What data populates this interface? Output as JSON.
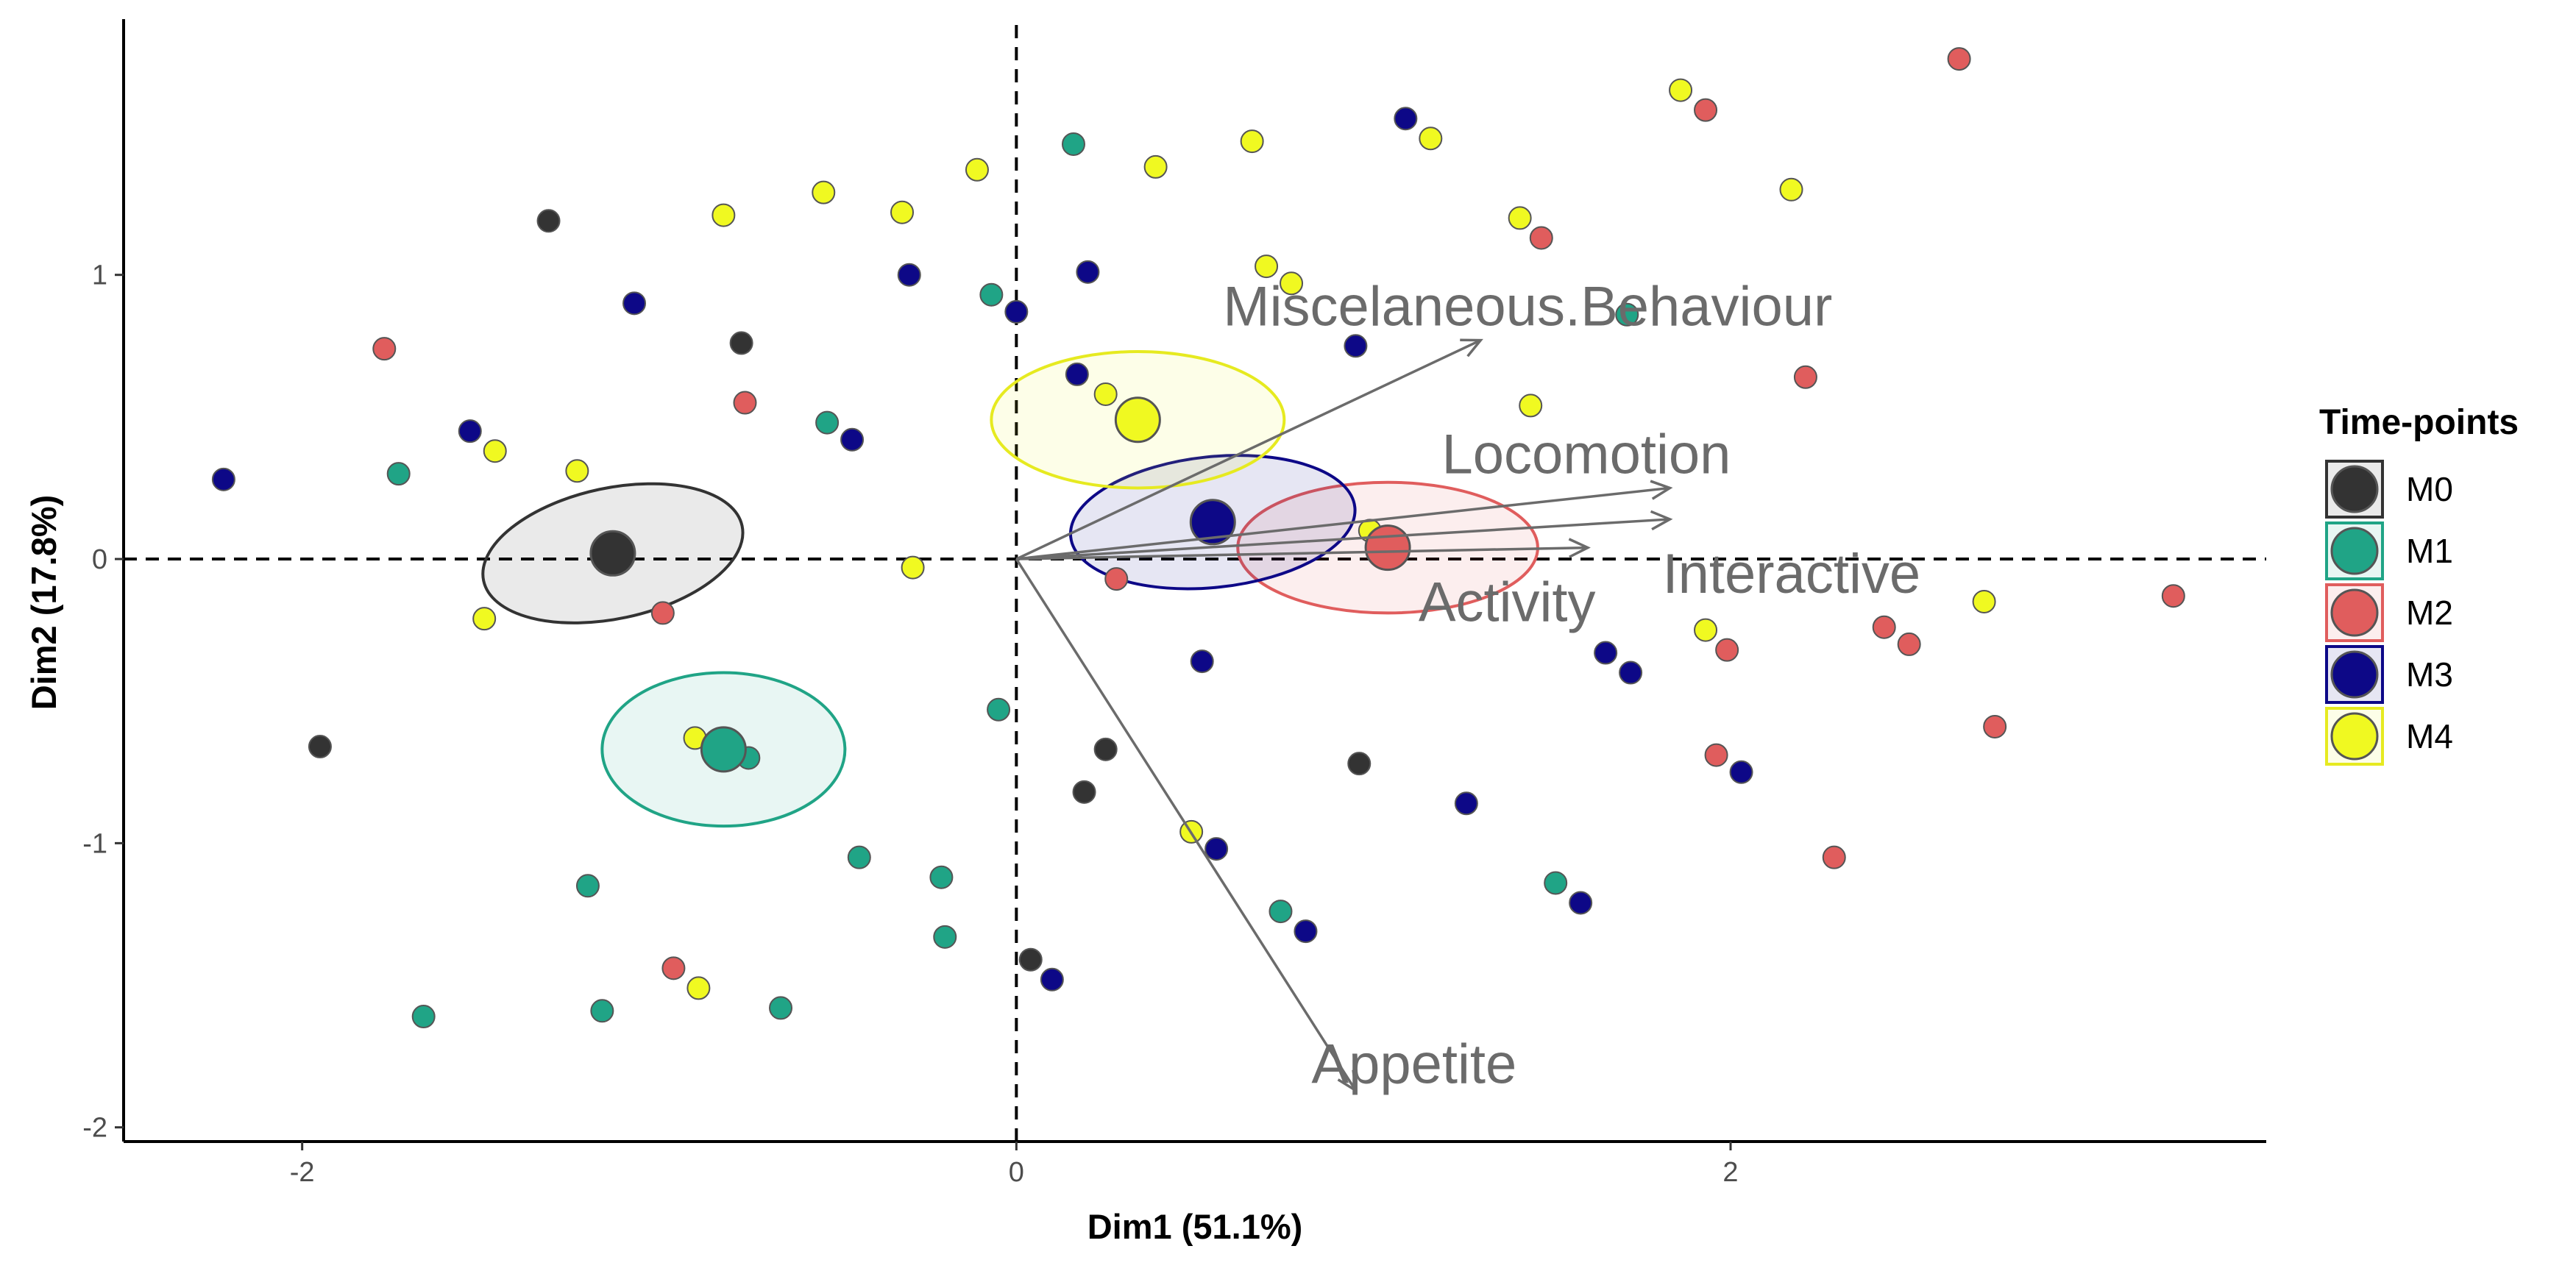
{
  "chart_data": {
    "type": "scatter",
    "subtype": "pca-biplot",
    "xlabel": "Dim1 (51.1%)",
    "ylabel": "Dim2 (17.8%)",
    "xlim": [
      -2.5,
      3.5
    ],
    "ylim": [
      -2.05,
      1.9
    ],
    "xticks": [
      -2,
      0,
      2
    ],
    "yticks": [
      -2,
      -1,
      0,
      1
    ],
    "xtick_labels": [
      "-2",
      "0",
      "2"
    ],
    "ytick_labels": [
      "-2",
      "-1",
      "0",
      "1"
    ],
    "reference_lines": {
      "x": 0,
      "y": 0,
      "style": "dashed"
    },
    "legend": {
      "title": "Time-points",
      "position": "right"
    },
    "groups": [
      {
        "name": "M0",
        "color": "#333333",
        "stroke": "#1a1a1a",
        "fill_alpha": 0.1,
        "centroid": [
          -1.13,
          0.02
        ],
        "ellipse": {
          "rx": 0.37,
          "ry": 0.23,
          "angle_deg": -12
        },
        "points": [
          [
            -1.31,
            1.19
          ],
          [
            -0.77,
            0.76
          ],
          [
            -1.95,
            -0.66
          ],
          [
            0.25,
            -0.67
          ],
          [
            0.19,
            -0.82
          ],
          [
            0.04,
            -1.41
          ],
          [
            0.96,
            -0.72
          ]
        ]
      },
      {
        "name": "M1",
        "color": "#20A486",
        "stroke": "#17947a",
        "fill_alpha": 0.1,
        "centroid": [
          -0.82,
          -0.67
        ],
        "ellipse": {
          "rx": 0.34,
          "ry": 0.27,
          "angle_deg": 0
        },
        "points": [
          [
            0.16,
            1.46
          ],
          [
            -0.07,
            0.93
          ],
          [
            -0.53,
            0.48
          ],
          [
            -1.73,
            0.3
          ],
          [
            -0.75,
            -0.7
          ],
          [
            -0.05,
            -0.53
          ],
          [
            -1.2,
            -1.15
          ],
          [
            -0.44,
            -1.05
          ],
          [
            -0.21,
            -1.12
          ],
          [
            -0.2,
            -1.33
          ],
          [
            -1.66,
            -1.61
          ],
          [
            -1.16,
            -1.59
          ],
          [
            -0.66,
            -1.58
          ],
          [
            0.74,
            -1.24
          ],
          [
            1.51,
            -1.14
          ],
          [
            1.71,
            0.86
          ]
        ]
      },
      {
        "name": "M2",
        "color": "#E05D5D",
        "stroke": "#c94a4a",
        "fill_alpha": 0.1,
        "centroid": [
          1.04,
          0.04
        ],
        "ellipse": {
          "rx": 0.42,
          "ry": 0.23,
          "angle_deg": 0
        },
        "points": [
          [
            2.64,
            1.76
          ],
          [
            1.93,
            1.58
          ],
          [
            1.47,
            1.13
          ],
          [
            2.21,
            0.64
          ],
          [
            -1.77,
            0.74
          ],
          [
            -0.76,
            0.55
          ],
          [
            -0.99,
            -0.19
          ],
          [
            0.28,
            -0.07
          ],
          [
            2.43,
            -0.24
          ],
          [
            2.5,
            -0.3
          ],
          [
            2.74,
            -0.59
          ],
          [
            3.24,
            -0.13
          ],
          [
            1.99,
            -0.32
          ],
          [
            1.96,
            -0.69
          ],
          [
            2.29,
            -1.05
          ],
          [
            -0.96,
            -1.44
          ]
        ]
      },
      {
        "name": "M3",
        "color": "#0D0887",
        "stroke": "#07055a",
        "fill_alpha": 0.1,
        "centroid": [
          0.55,
          0.13
        ],
        "ellipse": {
          "rx": 0.4,
          "ry": 0.23,
          "angle_deg": -6
        },
        "points": [
          [
            1.09,
            1.55
          ],
          [
            -1.07,
            0.9
          ],
          [
            -0.3,
            1.0
          ],
          [
            0.2,
            1.01
          ],
          [
            0.0,
            0.87
          ],
          [
            0.95,
            0.75
          ],
          [
            0.17,
            0.65
          ],
          [
            -1.53,
            0.45
          ],
          [
            -0.46,
            0.42
          ],
          [
            -2.22,
            0.28
          ],
          [
            0.52,
            -0.36
          ],
          [
            1.65,
            -0.33
          ],
          [
            1.72,
            -0.4
          ],
          [
            1.26,
            -0.86
          ],
          [
            2.03,
            -0.75
          ],
          [
            0.56,
            -1.02
          ],
          [
            0.81,
            -1.31
          ],
          [
            1.58,
            -1.21
          ],
          [
            0.1,
            -1.48
          ]
        ]
      },
      {
        "name": "M4",
        "color": "#F0F921",
        "stroke": "#aaaaaa",
        "fill_alpha": 0.1,
        "centroid": [
          0.34,
          0.49
        ],
        "ellipse": {
          "rx": 0.41,
          "ry": 0.24,
          "angle_deg": 0
        },
        "points": [
          [
            1.86,
            1.65
          ],
          [
            1.16,
            1.48
          ],
          [
            0.66,
            1.47
          ],
          [
            0.39,
            1.38
          ],
          [
            -0.11,
            1.37
          ],
          [
            -0.54,
            1.29
          ],
          [
            -0.82,
            1.21
          ],
          [
            -0.32,
            1.22
          ],
          [
            1.41,
            1.2
          ],
          [
            2.17,
            1.3
          ],
          [
            0.7,
            1.03
          ],
          [
            0.77,
            0.97
          ],
          [
            0.25,
            0.58
          ],
          [
            1.44,
            0.54
          ],
          [
            -1.46,
            0.38
          ],
          [
            -1.23,
            0.31
          ],
          [
            0.99,
            0.1
          ],
          [
            -0.29,
            -0.03
          ],
          [
            -1.49,
            -0.21
          ],
          [
            1.93,
            -0.25
          ],
          [
            2.71,
            -0.15
          ],
          [
            -0.9,
            -0.63
          ],
          [
            0.49,
            -0.96
          ],
          [
            -0.89,
            -1.51
          ]
        ]
      }
    ],
    "variables": [
      {
        "name": "Miscelaneous.Behaviour",
        "x": 1.3,
        "y": 0.77
      },
      {
        "name": "Locomotion",
        "x": 1.83,
        "y": 0.25
      },
      {
        "name": "Interactive",
        "x": 1.83,
        "y": 0.14
      },
      {
        "name": "Activity",
        "x": 1.6,
        "y": 0.04
      },
      {
        "name": "Appetite",
        "x": 0.95,
        "y": -1.87
      }
    ]
  }
}
